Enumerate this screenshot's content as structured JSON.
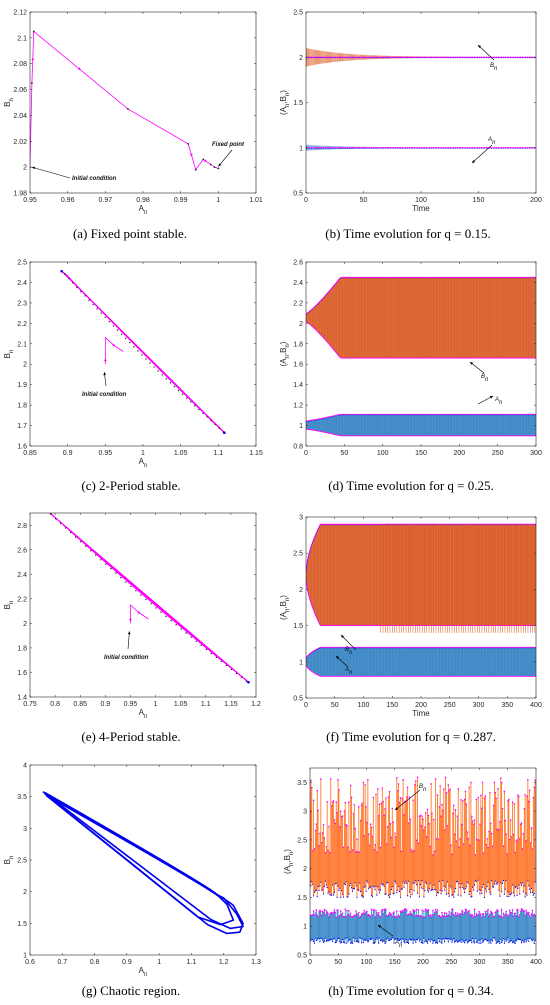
{
  "figure": {
    "panels": [
      {
        "id": "a",
        "caption": "(a) Fixed point stable."
      },
      {
        "id": "b",
        "caption": "(b) Time evolution for q = 0.15."
      },
      {
        "id": "c",
        "caption": "(c) 2-Period stable."
      },
      {
        "id": "d",
        "caption": "(d) Time evolution for q = 0.25."
      },
      {
        "id": "e",
        "caption": "(e) 4-Period stable."
      },
      {
        "id": "f",
        "caption": "(f) Time evolution for q = 0.287."
      },
      {
        "id": "g",
        "caption": "(g) Chaotic region."
      },
      {
        "id": "h",
        "caption": "(h) Time evolution for q = 0.34."
      }
    ]
  },
  "colors": {
    "magenta": "#ff00ff",
    "blue": "#0000ee",
    "orange": "#d95319",
    "orange2": "#ff6a1a",
    "steel": "#2a7fc4",
    "dark": "#222222"
  },
  "chart_data": [
    {
      "panel": "a",
      "type": "line",
      "title": "",
      "xlabel": "A_n",
      "ylabel": "B_n",
      "xlim": [
        0.95,
        1.01
      ],
      "ylim": [
        1.98,
        2.12
      ],
      "xticks": [
        "0.95",
        "0.96",
        "0.97",
        "0.98",
        "0.99",
        "1",
        "1.01"
      ],
      "yticks": [
        "1.98",
        "2",
        "2.02",
        "2.04",
        "2.06",
        "2.08",
        "2.1",
        "2.12"
      ],
      "annotations": [
        "Initial condition",
        "Fixed point"
      ],
      "series": [
        {
          "points": [
            [
              0.95,
              2.0
            ],
            [
              0.9505,
              2.065
            ],
            [
              0.951,
              2.105
            ],
            [
              0.976,
              2.045
            ],
            [
              0.992,
              2.018
            ],
            [
              0.994,
              1.998
            ],
            [
              0.996,
              2.006
            ],
            [
              0.998,
              2.002
            ],
            [
              0.999,
              2.0
            ],
            [
              1.0,
              1.999
            ]
          ]
        }
      ]
    },
    {
      "panel": "b",
      "type": "line",
      "title": "",
      "xlabel": "Time",
      "ylabel": "(A_n,B_n)",
      "xlim": [
        0,
        200
      ],
      "ylim": [
        0.5,
        2.5
      ],
      "xticks": [
        "0",
        "50",
        "100",
        "150",
        "200"
      ],
      "yticks": [
        "0.5",
        "1",
        "1.5",
        "2",
        "2.5"
      ],
      "annotations": [
        "B_n",
        "A_n"
      ],
      "series": [
        {
          "name": "A_n",
          "level": 1.0,
          "initial_amplitude": 0.03
        },
        {
          "name": "B_n",
          "level": 2.0,
          "initial_amplitude": 0.1
        }
      ]
    },
    {
      "panel": "c",
      "type": "scatter",
      "title": "",
      "xlabel": "A_n",
      "ylabel": "B_n",
      "xlim": [
        0.85,
        1.15
      ],
      "ylim": [
        1.6,
        2.5
      ],
      "xticks": [
        "0.85",
        "0.9",
        "0.95",
        "1",
        "1.05",
        "1.1",
        "1.15"
      ],
      "yticks": [
        "1.6",
        "1.7",
        "1.8",
        "1.9",
        "2",
        "2.1",
        "2.2",
        "2.3",
        "2.4",
        "2.5"
      ],
      "annotations": [
        "Initial condition"
      ],
      "series": [
        {
          "points": [
            [
              0.892,
              2.455
            ],
            [
              1.108,
              1.665
            ],
            [
              0.95,
              2.0
            ]
          ]
        }
      ]
    },
    {
      "panel": "d",
      "type": "area",
      "title": "",
      "xlabel": "",
      "ylabel": "(A_n,B_n)",
      "xlim": [
        0,
        300
      ],
      "ylim": [
        0.8,
        2.6
      ],
      "xticks": [
        "0",
        "50",
        "100",
        "150",
        "200",
        "250",
        "300"
      ],
      "yticks": [
        "0.8",
        "1",
        "1.2",
        "1.4",
        "1.6",
        "1.8",
        "2",
        "2.2",
        "2.4",
        "2.6"
      ],
      "annotations": [
        "B_n",
        "A_n"
      ],
      "series": [
        {
          "name": "A_n",
          "low": 0.9,
          "high": 1.11
        },
        {
          "name": "B_n",
          "low": 1.66,
          "high": 2.45
        }
      ]
    },
    {
      "panel": "e",
      "type": "scatter",
      "title": "",
      "xlabel": "A_n",
      "ylabel": "B_n",
      "xlim": [
        0.75,
        1.2
      ],
      "ylim": [
        1.4,
        2.9
      ],
      "xticks": [
        "0.75",
        "0.8",
        "0.85",
        "0.9",
        "0.95",
        "1",
        "1.05",
        "1.1",
        "1.15",
        "1.2"
      ],
      "yticks": [
        "1.4",
        "1.6",
        "1.8",
        "2",
        "2.2",
        "2.4",
        "2.6",
        "2.8"
      ],
      "annotations": [
        "Initial condition"
      ],
      "series": [
        {
          "points": [
            [
              0.785,
              2.915
            ],
            [
              1.185,
              1.52
            ],
            [
              0.95,
              2.0
            ]
          ]
        }
      ]
    },
    {
      "panel": "f",
      "type": "area",
      "title": "",
      "xlabel": "Time",
      "ylabel": "(A_n,B_n)",
      "xlim": [
        0,
        400
      ],
      "ylim": [
        0.5,
        3.0
      ],
      "xticks": [
        "0",
        "50",
        "100",
        "150",
        "200",
        "250",
        "300",
        "350",
        "400"
      ],
      "yticks": [
        "0.5",
        "1",
        "1.5",
        "2",
        "2.5",
        "3"
      ],
      "annotations": [
        "B_n",
        "A_n"
      ],
      "series": [
        {
          "name": "A_n",
          "low": 0.8,
          "high": 1.2
        },
        {
          "name": "B_n",
          "low": 1.5,
          "high": 2.9
        }
      ]
    },
    {
      "panel": "g",
      "type": "line",
      "title": "",
      "xlabel": "A_n",
      "ylabel": "B_n",
      "xlim": [
        0.6,
        1.3
      ],
      "ylim": [
        1,
        4
      ],
      "xticks": [
        "0.6",
        "0.7",
        "0.8",
        "0.9",
        "1",
        "1.1",
        "1.2",
        "1.3"
      ],
      "yticks": [
        "1",
        "1.5",
        "2",
        "2.5",
        "3",
        "3.5",
        "4"
      ],
      "annotations": [],
      "series": [
        {
          "points": [
            [
              0.64,
              3.58
            ],
            [
              1.24,
              1.35
            ]
          ]
        }
      ]
    },
    {
      "panel": "h",
      "type": "line",
      "title": "",
      "xlabel": "",
      "ylabel": "(A_n,B_n)",
      "xlim": [
        0,
        400
      ],
      "ylim": [
        0.5,
        3.75
      ],
      "xticks": [
        "0",
        "50",
        "100",
        "150",
        "200",
        "250",
        "300",
        "350",
        "400"
      ],
      "yticks": [
        "0.5",
        "1",
        "1.5",
        "2",
        "2.5",
        "3",
        "3.5"
      ],
      "annotations": [
        "B_n",
        "A_n"
      ],
      "series": [
        {
          "name": "A_n",
          "low": 0.7,
          "high": 1.3
        },
        {
          "name": "B_n",
          "low": 1.5,
          "high": 3.6
        }
      ]
    }
  ]
}
